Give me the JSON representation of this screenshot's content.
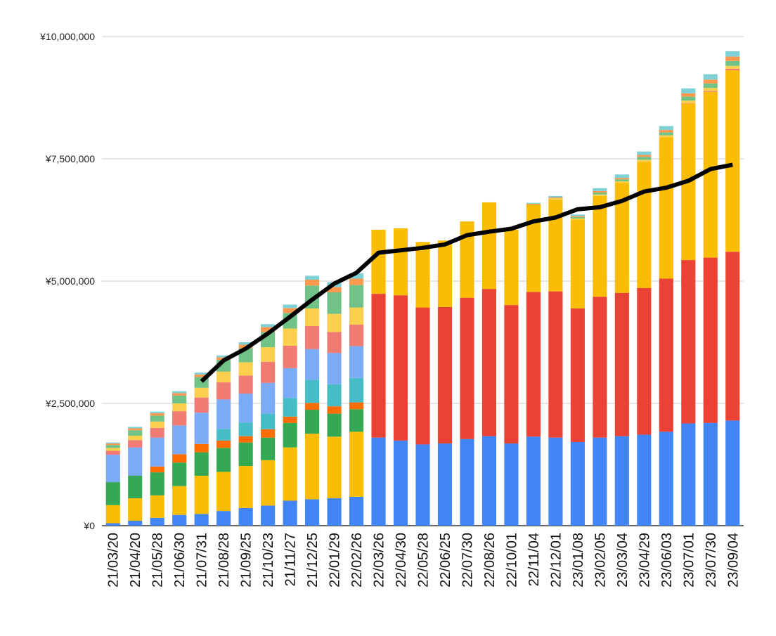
{
  "chart_data": {
    "type": "bar",
    "stacked": true,
    "title": "",
    "xlabel": "",
    "ylabel": "",
    "ylim": [
      0,
      10000000
    ],
    "grid": true,
    "y_ticks": [
      0,
      2500000,
      5000000,
      7500000,
      10000000
    ],
    "y_tick_labels": [
      "¥0",
      "¥2,500,000",
      "¥5,000,000",
      "¥7,500,000",
      "¥10,000,000"
    ],
    "categories": [
      "21/03/20",
      "21/04/20",
      "21/05/28",
      "21/06/30",
      "21/07/31",
      "21/08/28",
      "21/09/25",
      "21/10/23",
      "21/11/27",
      "21/12/25",
      "22/01/29",
      "22/02/26",
      "22/03/26",
      "22/04/30",
      "22/05/28",
      "22/06/25",
      "22/07/30",
      "22/08/26",
      "22/10/01",
      "22/11/04",
      "22/12/01",
      "23/01/08",
      "23/02/05",
      "23/03/04",
      "23/04/29",
      "23/06/03",
      "23/07/01",
      "23/07/30",
      "23/09/04"
    ],
    "series": [
      {
        "color": "#4285f4",
        "values": [
          50000,
          100000,
          160000,
          220000,
          240000,
          300000,
          360000,
          410000,
          510000,
          540000,
          560000,
          590000,
          1800000,
          1740000,
          1660000,
          1680000,
          1770000,
          1830000,
          1680000,
          1820000,
          1800000,
          1710000,
          1800000,
          1830000,
          1860000,
          1920000,
          2090000,
          2100000,
          2150000
        ]
      },
      {
        "color": "#ea4335",
        "values": [
          0,
          0,
          0,
          0,
          0,
          0,
          0,
          0,
          0,
          0,
          0,
          0,
          2940000,
          2970000,
          2800000,
          2790000,
          2890000,
          3010000,
          2830000,
          2960000,
          2990000,
          2730000,
          2880000,
          2930000,
          3000000,
          3130000,
          3340000,
          3380000,
          3450000
        ]
      },
      {
        "color": "#fbbc04",
        "values": [
          370000,
          460000,
          460000,
          590000,
          780000,
          800000,
          860000,
          930000,
          1090000,
          1340000,
          1260000,
          1330000,
          1310000,
          1370000,
          1340000,
          1360000,
          1560000,
          1770000,
          1540000,
          1780000,
          1880000,
          1820000,
          2060000,
          2250000,
          2580000,
          2890000,
          3200000,
          3390000,
          3710000
        ]
      },
      {
        "color": "#34a853",
        "values": [
          470000,
          460000,
          470000,
          480000,
          480000,
          490000,
          480000,
          460000,
          500000,
          490000,
          470000,
          460000,
          0,
          0,
          0,
          0,
          0,
          0,
          0,
          0,
          0,
          0,
          0,
          0,
          0,
          0,
          0,
          0,
          0
        ]
      },
      {
        "color": "#ff6d01",
        "values": [
          0,
          0,
          120000,
          170000,
          170000,
          150000,
          130000,
          170000,
          130000,
          140000,
          150000,
          140000,
          0,
          0,
          0,
          0,
          0,
          0,
          0,
          0,
          0,
          0,
          0,
          0,
          0,
          0,
          0,
          0,
          0
        ]
      },
      {
        "color": "#46bdc6",
        "values": [
          0,
          0,
          0,
          0,
          0,
          240000,
          280000,
          320000,
          380000,
          470000,
          450000,
          500000,
          0,
          0,
          0,
          0,
          0,
          0,
          0,
          0,
          0,
          0,
          0,
          0,
          0,
          0,
          0,
          0,
          0
        ]
      },
      {
        "color": "#7baaf7",
        "values": [
          560000,
          580000,
          590000,
          590000,
          640000,
          600000,
          590000,
          630000,
          610000,
          630000,
          640000,
          650000,
          0,
          0,
          0,
          0,
          0,
          0,
          0,
          0,
          0,
          0,
          0,
          0,
          0,
          0,
          0,
          0,
          0
        ]
      },
      {
        "color": "#f07b72",
        "values": [
          80000,
          150000,
          200000,
          290000,
          310000,
          350000,
          370000,
          430000,
          460000,
          470000,
          430000,
          440000,
          0,
          0,
          0,
          0,
          0,
          0,
          0,
          0,
          0,
          0,
          0,
          0,
          0,
          0,
          10000,
          20000,
          30000
        ]
      },
      {
        "color": "#fcd04f",
        "values": [
          60000,
          90000,
          130000,
          160000,
          200000,
          220000,
          270000,
          300000,
          350000,
          360000,
          370000,
          350000,
          0,
          0,
          0,
          0,
          0,
          0,
          0,
          0,
          20000,
          20000,
          30000,
          30000,
          40000,
          40000,
          50000,
          60000,
          60000
        ]
      },
      {
        "color": "#71c287",
        "values": [
          60000,
          110000,
          120000,
          160000,
          220000,
          240000,
          290000,
          310000,
          320000,
          470000,
          440000,
          460000,
          0,
          0,
          0,
          0,
          0,
          0,
          0,
          0,
          0,
          30000,
          40000,
          40000,
          60000,
          60000,
          80000,
          90000,
          100000
        ]
      },
      {
        "color": "#ff994d",
        "values": [
          30000,
          40000,
          50000,
          50000,
          50000,
          50000,
          70000,
          100000,
          100000,
          120000,
          110000,
          130000,
          0,
          0,
          0,
          0,
          0,
          0,
          0,
          20000,
          20000,
          20000,
          30000,
          30000,
          40000,
          50000,
          70000,
          80000,
          90000
        ]
      },
      {
        "color": "#7ed1d7",
        "values": [
          20000,
          30000,
          30000,
          40000,
          40000,
          40000,
          50000,
          60000,
          70000,
          80000,
          100000,
          110000,
          0,
          0,
          0,
          0,
          0,
          0,
          0,
          20000,
          30000,
          30000,
          60000,
          70000,
          70000,
          80000,
          100000,
          110000,
          110000
        ]
      }
    ],
    "line_series": {
      "color": "#000000",
      "values": [
        null,
        null,
        null,
        null,
        2950000,
        3380000,
        3620000,
        3930000,
        4270000,
        4620000,
        4950000,
        5170000,
        5580000,
        5630000,
        5680000,
        5750000,
        5940000,
        6010000,
        6070000,
        6220000,
        6300000,
        6470000,
        6510000,
        6640000,
        6830000,
        6910000,
        7050000,
        7290000,
        7380000
      ]
    }
  }
}
